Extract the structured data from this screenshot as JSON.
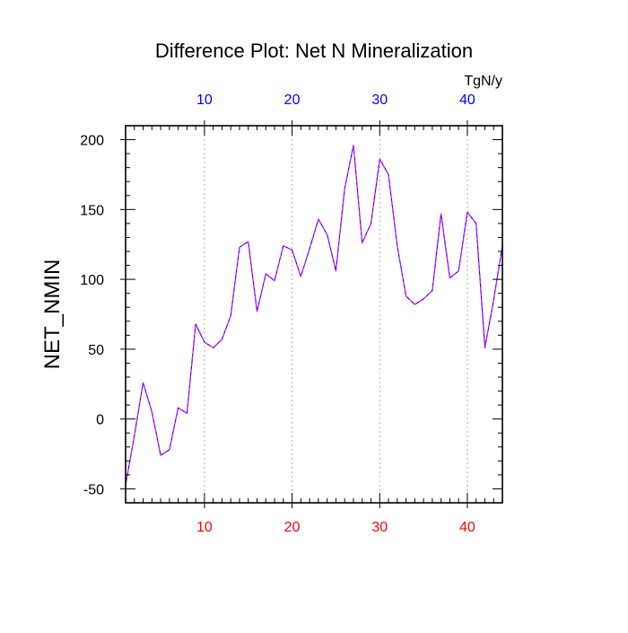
{
  "chart_data": {
    "type": "line",
    "title": "Difference Plot: Net N Mineralization",
    "ylabel": "NET_NMIN",
    "top_axis_unit": "TgN/y",
    "xlim": [
      1,
      44
    ],
    "ylim": [
      -60,
      210
    ],
    "x_ticks": [
      10,
      20,
      30,
      40
    ],
    "y_ticks": [
      -50,
      0,
      50,
      100,
      150,
      200
    ],
    "x_ticks_bottom": [
      "10",
      "20",
      "30",
      "40"
    ],
    "x_ticks_top": [
      "10",
      "20",
      "30",
      "40"
    ],
    "y_tick_labels": [
      "-50",
      "0",
      "50",
      "100",
      "150",
      "200"
    ],
    "grid": "vertical dotted lines at major x ticks",
    "colors": {
      "bottom_ticks": "#ff0000",
      "top_ticks": "#0000ff",
      "line_a": "#0000ff",
      "line_b": "#ff00ff"
    },
    "series": [
      {
        "x": [
          1,
          2,
          3,
          4,
          5,
          6,
          7,
          8,
          9,
          10,
          11,
          12,
          13,
          14,
          15,
          16,
          17,
          18,
          19,
          20,
          21,
          22,
          23,
          24,
          25,
          26,
          27,
          28,
          29,
          30,
          31,
          32,
          33,
          34,
          35,
          36,
          37,
          38,
          39,
          40,
          41,
          42,
          43,
          44
        ],
        "values": [
          -47,
          -12,
          26,
          5,
          -26,
          -22,
          8,
          4,
          68,
          55,
          51,
          57,
          74,
          123,
          127,
          77,
          104,
          99,
          124,
          121,
          102,
          122,
          143,
          132,
          106,
          165,
          196,
          126,
          140,
          186,
          175,
          124,
          88,
          82,
          86,
          92,
          147,
          101,
          106,
          148,
          140,
          51,
          85,
          124
        ]
      },
      {
        "x": [
          1,
          2,
          3,
          4,
          5,
          6,
          7,
          8,
          9,
          10,
          11,
          12,
          13,
          14,
          15,
          16,
          17,
          18,
          19,
          20,
          21,
          22,
          23,
          24,
          25,
          26,
          27,
          28,
          29,
          30,
          31,
          32,
          33,
          34,
          35,
          36,
          37,
          38,
          39,
          40,
          41,
          42,
          43,
          44
        ],
        "values": [
          -47,
          -12,
          26,
          5,
          -26,
          -22,
          8,
          4,
          68,
          55,
          51,
          57,
          74,
          123,
          127,
          77,
          104,
          99,
          124,
          121,
          102,
          122,
          143,
          132,
          106,
          165,
          196,
          126,
          140,
          186,
          175,
          124,
          88,
          82,
          86,
          92,
          147,
          101,
          106,
          148,
          140,
          51,
          85,
          124
        ]
      }
    ]
  }
}
